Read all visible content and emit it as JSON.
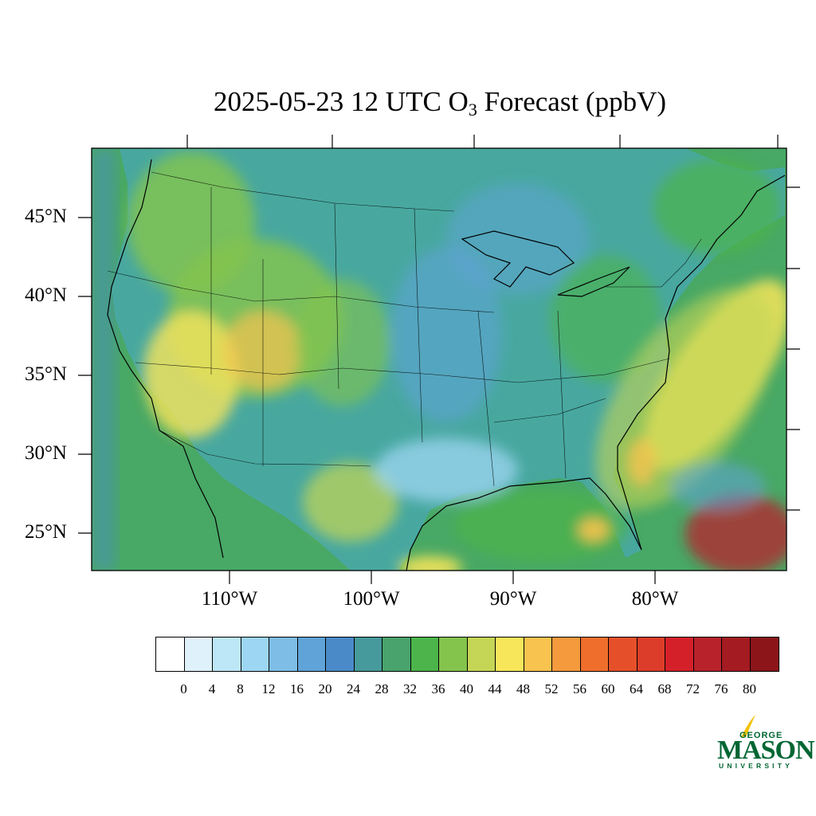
{
  "title": {
    "prefix": "2025-05-23 12 UTC O",
    "subscript": "3",
    "suffix": " Forecast (ppbV)"
  },
  "map": {
    "variable": "O3",
    "units": "ppbV",
    "projection": "lambert-conformal",
    "region": "Contiguous United States",
    "lat_labels": [
      "45°N",
      "40°N",
      "35°N",
      "30°N",
      "25°N"
    ],
    "lon_labels": [
      "110°W",
      "100°W",
      "90°W",
      "80°W"
    ],
    "ocean_color": "#48a865",
    "land_color": "#48a8a0",
    "boundary_color": "#000000"
  },
  "colorbar": {
    "ticks": [
      "0",
      "4",
      "8",
      "12",
      "16",
      "20",
      "24",
      "28",
      "32",
      "36",
      "40",
      "44",
      "48",
      "52",
      "56",
      "60",
      "64",
      "68",
      "72",
      "76",
      "80"
    ],
    "colors": [
      "#ffffff",
      "#dff1fb",
      "#bde6f7",
      "#9dd6f3",
      "#7ebde6",
      "#5fa3d8",
      "#4a8ac8",
      "#479a9c",
      "#48a36c",
      "#4cb44a",
      "#84c44d",
      "#c5d656",
      "#f7e55a",
      "#f8c34e",
      "#f59a3d",
      "#f06e2c",
      "#e5502a",
      "#dc3d2a",
      "#d42029",
      "#b8222b",
      "#a41b21",
      "#8b1519"
    ]
  },
  "logo": {
    "line1": "GEORGE",
    "line2": "MASON",
    "line3": "UNIVERSITY",
    "color": "#006633",
    "accent": "#f2c200"
  }
}
